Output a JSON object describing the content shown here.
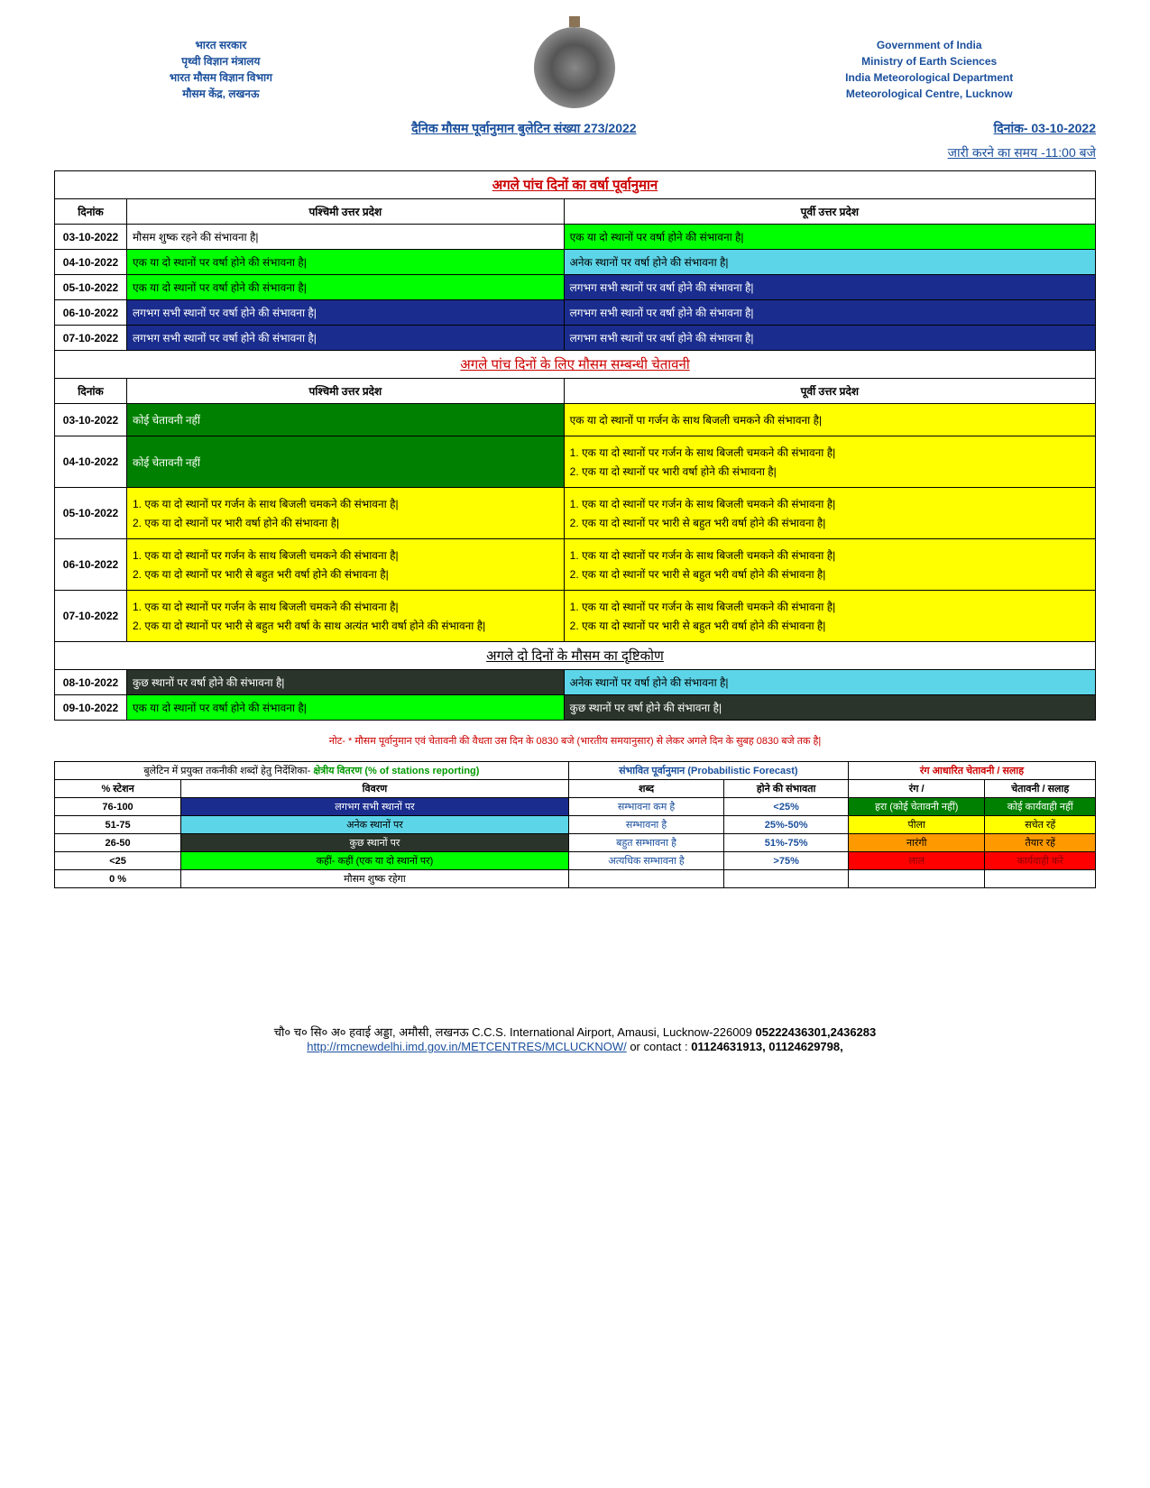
{
  "header": {
    "left_lines": [
      "भारत सरकार",
      "पृथ्वी विज्ञान मंत्रालय",
      "भारत मौसम विज्ञान विभाग",
      "मौसम केंद्र, लखनऊ"
    ],
    "right_lines": [
      "Government of India",
      "Ministry of Earth Sciences",
      "India Meteorological Department",
      "Meteorological Centre, Lucknow"
    ]
  },
  "bulletin": {
    "title": "दैनिक मौसम पूर्वानुमान बुलेटिन संख्या  273/2022",
    "date_label": "दिनांक-  03-10-2022",
    "issue_time": "जारी करने का समय -11:00 बजे"
  },
  "forecast": {
    "section_title": "अगले पांच दिनों का वर्षा पूर्वानुमान",
    "col_date": "दिनांक",
    "col_west": "पश्चिमी उत्तर प्रदेश",
    "col_east": "पूर्वी उत्तर प्रदेश",
    "rows": [
      {
        "date": "03-10-2022",
        "west": "मौसम  शुष्क रहने की संभावना है|",
        "west_bg": "",
        "east": "एक या दो स्थानों पर वर्षा होने की संभावना है|",
        "east_bg": "bg-green-bright"
      },
      {
        "date": "04-10-2022",
        "west": "एक या दो स्थानों पर वर्षा होने की संभावना है|",
        "west_bg": "bg-green-bright",
        "east": "अनेक  स्थानों पर वर्षा होने की संभावना है|",
        "east_bg": "bg-cyan"
      },
      {
        "date": "05-10-2022",
        "west": "एक या दो स्थानों पर वर्षा होने की संभावना है|",
        "west_bg": "bg-green-bright",
        "east": "लगभग सभी स्थानों पर वर्षा होने की संभावना है|",
        "east_bg": "bg-blue-dark"
      },
      {
        "date": "06-10-2022",
        "west": "लगभग सभी स्थानों पर वर्षा होने की संभावना है|",
        "west_bg": "bg-blue-dark",
        "east": "लगभग सभी स्थानों पर वर्षा होने की संभावना है|",
        "east_bg": "bg-blue-dark"
      },
      {
        "date": "07-10-2022",
        "west": "लगभग सभी स्थानों पर वर्षा होने की संभावना है|",
        "west_bg": "bg-blue-dark",
        "east": "लगभग सभी स्थानों पर वर्षा होने की संभावना है|",
        "east_bg": "bg-blue-dark"
      }
    ]
  },
  "warning": {
    "section_title": "अगले पांच दिनों  के लिए मौसम सम्बन्धी  चेतावनी",
    "rows": [
      {
        "date": "03-10-2022",
        "west": [
          "कोई चेतावनी नहीं"
        ],
        "west_bg": "bg-green-dark",
        "east": [
          "एक या दो स्थानों पा गर्जन के साथ बिजली चमकने की संभावना है|"
        ],
        "east_bg": "bg-yellow"
      },
      {
        "date": "04-10-2022",
        "west": [
          "कोई चेतावनी नहीं"
        ],
        "west_bg": "bg-green-dark",
        "east": [
          "1. एक या दो  स्थानों  पर  गर्जन  के  साथ  बिजली  चमकने  की  संभावना  है|",
          "2. एक या दो  स्थानों  पर  भारी  वर्षा होने  की  संभावना  है|"
        ],
        "east_bg": "bg-yellow"
      },
      {
        "date": "05-10-2022",
        "west": [
          "1. एक या दो  स्थानों  पर  गर्जन  के  साथ  बिजली  चमकने  की  संभावना  है|",
          "2. एक या दो  स्थानों  पर  भारी  वर्षा होने  की  संभावना  है|"
        ],
        "west_bg": "bg-yellow",
        "east": [
          "1. एक या दो  स्थानों  पर  गर्जन  के  साथ  बिजली  चमकने  की  संभावना  है|",
          "2. एक या दो  स्थानों  पर  भारी  से  बहुत  भरी  वर्षा होने  की  संभावना  है|"
        ],
        "east_bg": "bg-yellow"
      },
      {
        "date": "06-10-2022",
        "west": [
          "1. एक या दो  स्थानों  पर  गर्जन  के  साथ  बिजली  चमकने  की  संभावना  है|",
          "2. एक या दो  स्थानों  पर  भारी  से  बहुत  भरी  वर्षा होने  की  संभावना  है|"
        ],
        "west_bg": "bg-yellow",
        "east": [
          "1. एक या दो  स्थानों  पर  गर्जन  के  साथ  बिजली  चमकने  की  संभावना  है|",
          "2. एक या दो  स्थानों  पर  भारी  से  बहुत  भरी  वर्षा होने  की  संभावना  है|"
        ],
        "east_bg": "bg-yellow"
      },
      {
        "date": "07-10-2022",
        "west": [
          "1. एक या दो  स्थानों  पर  गर्जन  के  साथ  बिजली  चमकने  की  संभावना  है|",
          "2. एक या दो  स्थानों  पर  भारी  से  बहुत  भरी  वर्षा के  साथ  अत्यंत  भारी  वर्षा होने  की  संभावना  है|"
        ],
        "west_bg": "bg-yellow",
        "east": [
          "1. एक या दो  स्थानों  पर  गर्जन  के  साथ  बिजली  चमकने  की  संभावना  है|",
          "2. एक या दो  स्थानों  पर  भारी  से  बहुत  भरी  वर्षा होने  की  संभावना  है|"
        ],
        "east_bg": "bg-yellow"
      }
    ]
  },
  "outlook": {
    "section_title": "अगले  दो   दिनों  के   मौसम  का   दृष्टिकोण",
    "rows": [
      {
        "date": "08-10-2022",
        "west": "कुछ  स्थानों पर वर्षा होने की संभावना है|",
        "west_bg": "bg-dark",
        "east": "अनेक  स्थानों पर वर्षा होने की संभावना है|",
        "east_bg": "bg-cyan"
      },
      {
        "date": "09-10-2022",
        "west": "एक या दो स्थानों पर वर्षा होने की संभावना है|",
        "west_bg": "bg-green-bright",
        "east": "कुछ  स्थानों पर वर्षा होने की संभावना है|",
        "east_bg": "bg-dark"
      }
    ]
  },
  "note": "नोट-   * मौसम पूर्वानुमान एवं चेतावनी की वैधता उस दिन के 0830 बजे (भारतीय समयानुसार)  से लेकर अगले दिन के सुबह 0830 बजे तक है|",
  "legend": {
    "h1": "बुलेटिन  में प्रयुक्त तकनीकी शब्दों हेतु निर्देशिका-",
    "h1_sub": " क्षेत्रीय वितरण (% of stations reporting)",
    "h2": "संभावित पूर्वानुमान (Probabilistic Forecast)",
    "h3": "रंग आधारित चेतावनी / सलाह",
    "col_station": "% स्टेशन",
    "col_desc": "विवरण",
    "col_word": "शब्द",
    "col_prob": "होने की संभावता",
    "col_color": "रंग /",
    "col_advice": "चेतावनी / सलाह",
    "rows": [
      {
        "pct": "76-100",
        "desc": "लगभग सभी स्थानों पर",
        "desc_bg": "bg-blue-dark",
        "word": "सम्भावना कम है",
        "prob": "<25%",
        "color": "हरा (कोई चेतावनी नहीं)",
        "color_bg": "bg-green-dark",
        "advice": "कोई कार्यवाही नहीं",
        "advice_bg": "bg-green-dark"
      },
      {
        "pct": "51-75",
        "desc": "अनेक स्थानों पर",
        "desc_bg": "bg-cyan",
        "word": "सम्भावना है",
        "prob": "25%-50%",
        "color": "पीला",
        "color_bg": "bg-yellow",
        "advice": "सचेत रहें",
        "advice_bg": "bg-yellow"
      },
      {
        "pct": "26-50",
        "desc": "कुछ स्थानों पर",
        "desc_bg": "bg-dark",
        "word": "बहुत सम्भावना है",
        "prob": "51%-75%",
        "color": "नारंगी",
        "color_bg": "bg-orange",
        "advice": "तैयार रहें",
        "advice_bg": "bg-orange"
      },
      {
        "pct": "<25",
        "desc": "कहीं- कहीं  (एक या दो स्थानों पर)",
        "desc_bg": "bg-green-bright",
        "word": "अत्यधिक सम्भावना है",
        "prob": ">75%",
        "color": "लाल",
        "color_bg": "bg-red",
        "advice": "कार्यवाही करें",
        "advice_bg": "bg-red"
      },
      {
        "pct": "0 %",
        "desc": "मौसम शुष्क रहेगा",
        "desc_bg": "",
        "word": "",
        "prob": "",
        "color": "",
        "color_bg": "",
        "advice": "",
        "advice_bg": ""
      }
    ]
  },
  "footer": {
    "address": "चौ० च० सि० अ० हवाई अड्डा, अमौसी, लखनऊ  C.C.S. International Airport, Amausi, Lucknow-226009 ",
    "phones1": "05222436301,2436283",
    "url": "http://rmcnewdelhi.imd.gov.in/METCENTRES/MCLUCKNOW/",
    "contact": " or contact :  ",
    "phones2": "01124631913, 01124629798,"
  }
}
